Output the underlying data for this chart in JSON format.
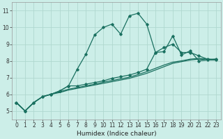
{
  "xlabel": "Humidex (Indice chaleur)",
  "bg_color": "#cceee8",
  "grid_color": "#b0d8d0",
  "line_color": "#1a7060",
  "xlim": [
    -0.5,
    23.5
  ],
  "ylim": [
    4.5,
    11.5
  ],
  "xticks": [
    0,
    1,
    2,
    3,
    4,
    5,
    6,
    7,
    8,
    9,
    10,
    11,
    12,
    13,
    14,
    15,
    16,
    17,
    18,
    19,
    20,
    21,
    22,
    23
  ],
  "yticks": [
    5,
    6,
    7,
    8,
    9,
    10,
    11
  ],
  "series_spiky_x": [
    0,
    1,
    2,
    3,
    4,
    5,
    6,
    7,
    8,
    9,
    10,
    11,
    12,
    13,
    14,
    15,
    16,
    17,
    18,
    19,
    20,
    21,
    22,
    23
  ],
  "series_spiky_y": [
    5.5,
    5.0,
    5.5,
    5.85,
    6.0,
    6.2,
    6.5,
    7.5,
    8.4,
    9.55,
    10.0,
    10.2,
    9.6,
    10.7,
    10.85,
    10.2,
    8.5,
    8.55,
    9.5,
    8.35,
    8.6,
    8.0,
    8.05,
    8.1
  ],
  "series_mid_x": [
    0,
    1,
    2,
    3,
    4,
    5,
    6,
    7,
    8,
    9,
    10,
    11,
    12,
    13,
    14,
    15,
    16,
    17,
    18,
    19,
    20,
    21,
    22,
    23
  ],
  "series_mid_y": [
    5.5,
    5.0,
    5.5,
    5.85,
    6.0,
    6.2,
    6.5,
    6.5,
    6.6,
    6.7,
    6.8,
    6.95,
    7.05,
    7.15,
    7.3,
    7.5,
    8.5,
    8.8,
    9.0,
    8.5,
    8.5,
    8.3,
    8.1,
    8.05
  ],
  "series_low1_x": [
    0,
    1,
    2,
    3,
    4,
    5,
    6,
    7,
    8,
    9,
    10,
    11,
    12,
    13,
    14,
    15,
    16,
    17,
    18,
    19,
    20,
    21,
    22,
    23
  ],
  "series_low1_y": [
    5.5,
    5.0,
    5.5,
    5.85,
    6.0,
    6.1,
    6.25,
    6.35,
    6.45,
    6.55,
    6.65,
    6.75,
    6.85,
    6.95,
    7.1,
    7.25,
    7.45,
    7.65,
    7.85,
    7.95,
    8.05,
    8.1,
    8.05,
    8.05
  ],
  "series_low2_x": [
    0,
    1,
    2,
    3,
    4,
    5,
    6,
    7,
    8,
    9,
    10,
    11,
    12,
    13,
    14,
    15,
    16,
    17,
    18,
    19,
    20,
    21,
    22,
    23
  ],
  "series_low2_y": [
    5.5,
    5.0,
    5.5,
    5.85,
    6.0,
    6.15,
    6.3,
    6.4,
    6.5,
    6.6,
    6.72,
    6.82,
    6.92,
    7.02,
    7.18,
    7.35,
    7.55,
    7.75,
    7.92,
    8.0,
    8.1,
    8.15,
    8.1,
    8.1
  ]
}
